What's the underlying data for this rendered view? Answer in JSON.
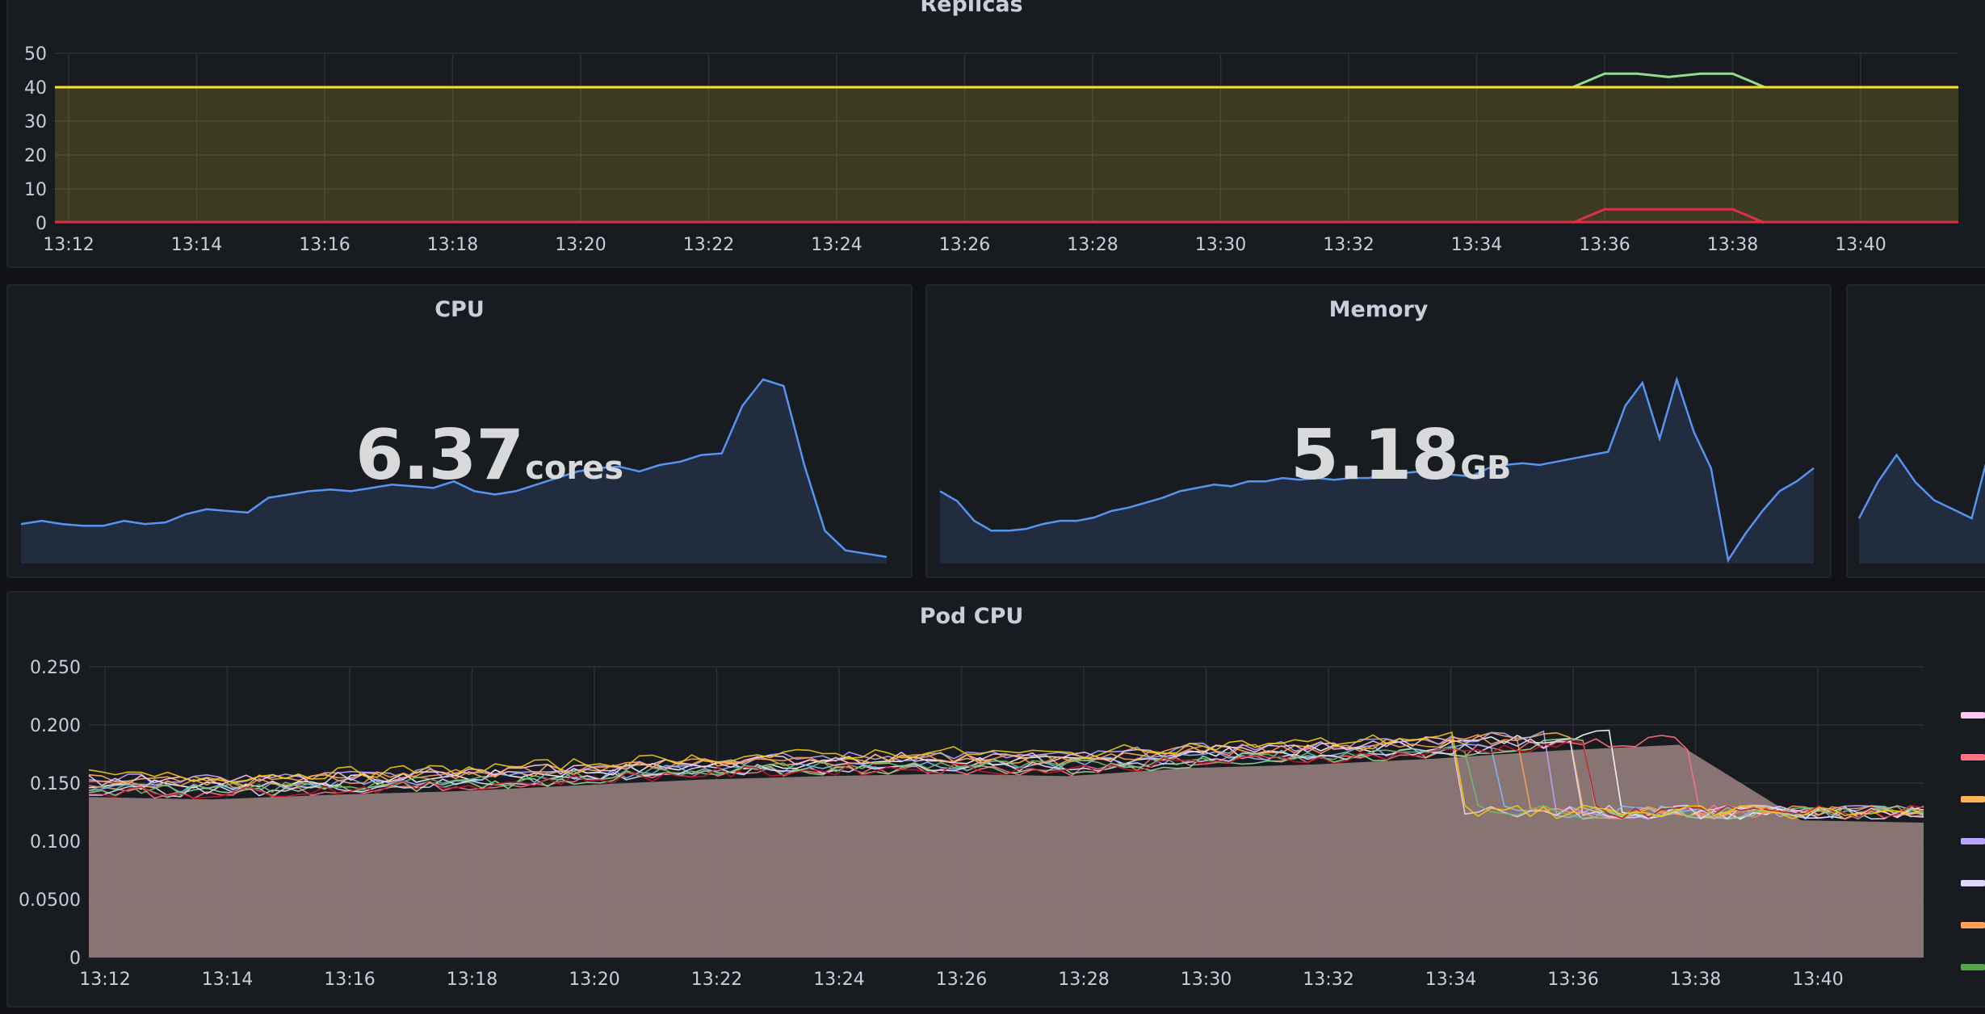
{
  "panels": {
    "replicas": {
      "title": "Replicas"
    },
    "cpu": {
      "title": "CPU",
      "value": "6.37",
      "unit": "cores"
    },
    "memory": {
      "title": "Memory",
      "value": "5.18",
      "unit": "GB"
    },
    "pod_cpu": {
      "title": "Pod CPU"
    }
  },
  "colors": {
    "yellow": "#fade2a",
    "green": "#96d98d",
    "red": "#e02f44",
    "blue": "#5794f2",
    "pod_fill": "#9b8482",
    "legend": [
      "#ffc6f0",
      "#ff7383",
      "#ffb357",
      "#b8a6ff",
      "#e0d9ff",
      "#ffa15a",
      "#56a64b"
    ]
  },
  "chart_data": [
    {
      "type": "line",
      "title": "Replicas",
      "x": [
        "13:12",
        "13:14",
        "13:16",
        "13:18",
        "13:20",
        "13:22",
        "13:24",
        "13:26",
        "13:28",
        "13:30",
        "13:32",
        "13:34",
        "13:36",
        "13:38",
        "13:40"
      ],
      "ylim": [
        0,
        50
      ],
      "yticks": [
        "0",
        "10",
        "20",
        "30",
        "40",
        "50"
      ],
      "series": [
        {
          "color": "#fade2a",
          "values_note": "constant",
          "value": 40
        },
        {
          "color": "#96d98d",
          "x": [
            "13:35.5",
            "13:36",
            "13:36.5",
            "13:37",
            "13:37.5",
            "13:38",
            "13:38.5"
          ],
          "values": [
            40,
            44,
            44,
            43,
            44,
            44,
            40
          ]
        },
        {
          "color": "#e02f44",
          "x": [
            "13:35.5",
            "13:36",
            "13:37",
            "13:38",
            "13:38.5"
          ],
          "values": [
            0,
            4,
            4,
            4,
            0
          ]
        }
      ]
    },
    {
      "type": "area",
      "title": "CPU",
      "values": [
        1.2,
        1.3,
        1.2,
        1.15,
        1.15,
        1.3,
        1.2,
        1.25,
        1.5,
        1.65,
        1.6,
        1.55,
        2.0,
        2.1,
        2.2,
        2.25,
        2.2,
        2.3,
        2.4,
        2.35,
        2.3,
        2.5,
        2.2,
        2.1,
        2.2,
        2.4,
        2.6,
        2.8,
        2.9,
        2.95,
        2.8,
        3.0,
        3.1,
        3.3,
        3.35,
        4.8,
        5.6,
        5.4,
        3.0,
        1.0,
        0.4,
        0.3,
        0.2
      ]
    },
    {
      "type": "area",
      "title": "Memory",
      "values": [
        2.2,
        1.9,
        1.3,
        1.0,
        1.0,
        1.05,
        1.2,
        1.3,
        1.3,
        1.4,
        1.6,
        1.7,
        1.85,
        2.0,
        2.2,
        2.3,
        2.4,
        2.35,
        2.5,
        2.5,
        2.6,
        2.55,
        2.6,
        2.55,
        2.6,
        2.6,
        2.7,
        2.75,
        2.8,
        2.75,
        2.7,
        2.65,
        2.9,
        3.0,
        3.05,
        3.0,
        3.1,
        3.2,
        3.3,
        3.4,
        4.8,
        5.5,
        3.8,
        5.6,
        4.0,
        2.9,
        0.1,
        0.9,
        1.6,
        2.2,
        2.5,
        2.9
      ]
    },
    {
      "type": "area",
      "title": "Pod CPU",
      "x": [
        "13:12",
        "13:14",
        "13:16",
        "13:18",
        "13:20",
        "13:22",
        "13:24",
        "13:26",
        "13:28",
        "13:30",
        "13:32",
        "13:34",
        "13:36",
        "13:38",
        "13:40"
      ],
      "yticks": [
        "0",
        "0.0500",
        "0.100",
        "0.150",
        "0.200",
        "0.250"
      ],
      "ylim": [
        0,
        0.25
      ],
      "series_count": 12,
      "trend": [
        0.15,
        0.148,
        0.152,
        0.155,
        0.16,
        0.165,
        0.168,
        0.17,
        0.168,
        0.175,
        0.178,
        0.183,
        0.19,
        0.195,
        0.13,
        0.128
      ]
    }
  ]
}
